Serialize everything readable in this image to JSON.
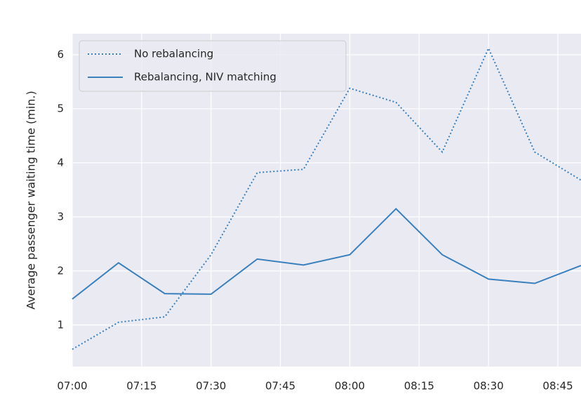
{
  "chart_data": {
    "type": "line",
    "y_label": "Average passenger waiting time (min.)",
    "x": [
      "07:00",
      "07:10",
      "07:20",
      "07:30",
      "07:40",
      "07:50",
      "08:00",
      "08:10",
      "08:20",
      "08:30",
      "08:40",
      "08:50"
    ],
    "series": [
      {
        "name": "No rebalancing",
        "color": "#3a80bd",
        "dash": "dotted",
        "values": [
          0.55,
          1.05,
          1.15,
          2.3,
          3.82,
          3.88,
          5.38,
          5.12,
          4.2,
          6.12,
          4.2,
          3.68
        ]
      },
      {
        "name": "Rebalancing, NIV matching",
        "color": "#3a80bd",
        "dash": "solid",
        "values": [
          1.48,
          2.15,
          1.58,
          1.57,
          2.22,
          2.11,
          2.3,
          3.15,
          2.3,
          1.85,
          1.77,
          2.1
        ]
      }
    ],
    "xlim": [
      "07:00",
      "08:50"
    ],
    "xticks": [
      "07:00",
      "07:15",
      "07:30",
      "07:45",
      "08:00",
      "08:15",
      "08:30",
      "08:45"
    ],
    "ylim": [
      0.23,
      6.39
    ],
    "yticks": [
      1,
      2,
      3,
      4,
      5,
      6
    ],
    "grid": true,
    "legend": "upper left"
  }
}
